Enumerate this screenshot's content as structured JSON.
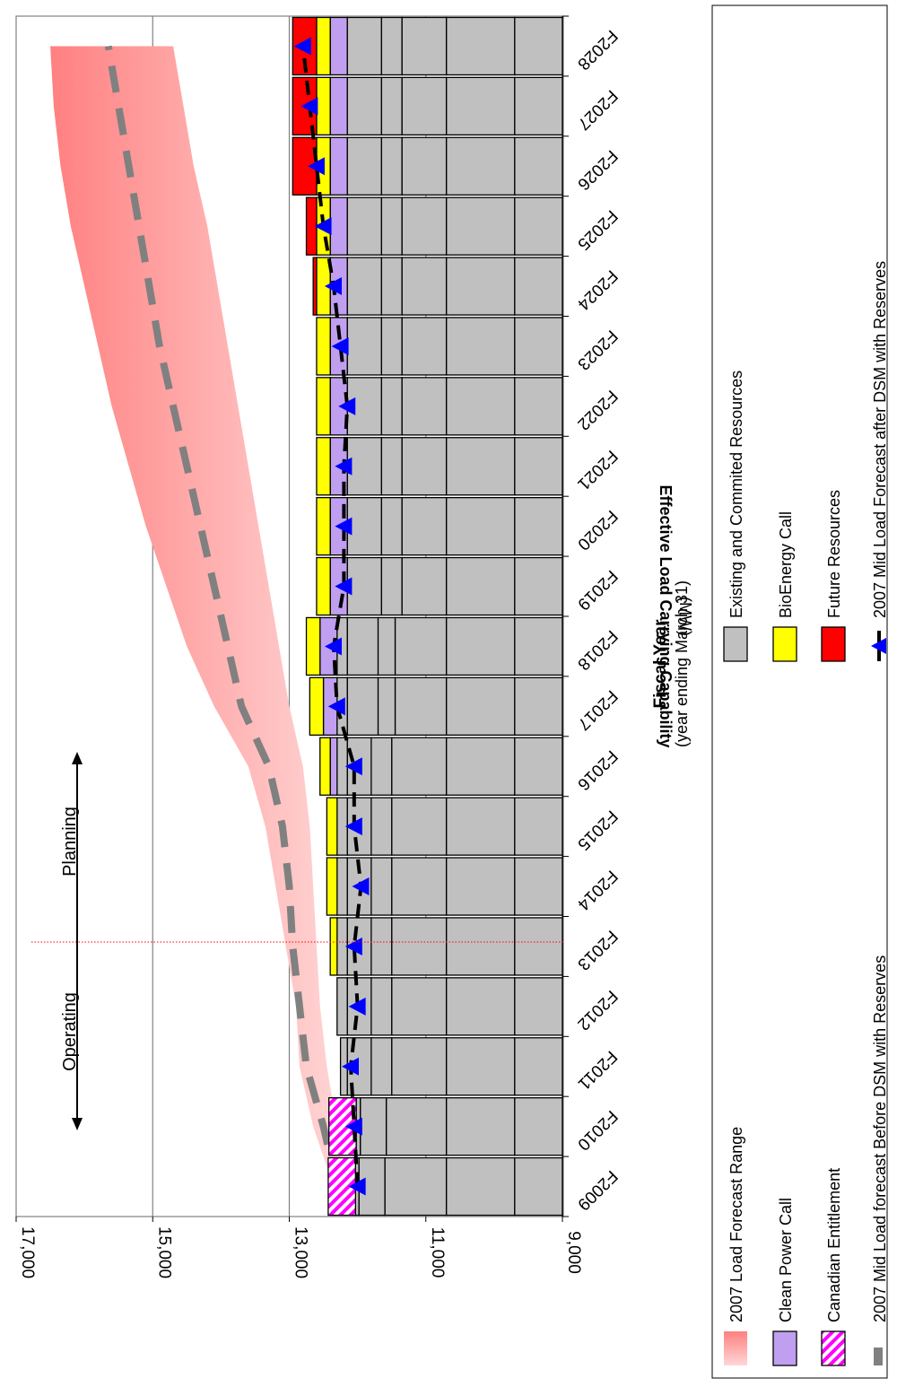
{
  "chart_data": {
    "type": "bar",
    "ylabel": "Effective Load Carrying Capability",
    "ylabel_unit": "(MW)",
    "xlabel": "Fiscal Year",
    "xlabel_sub": "(year ending March 31)",
    "ylim": [
      9000,
      17000
    ],
    "y_ticks": [
      "9,000",
      "11,000",
      "13,000",
      "15,000",
      "17,000"
    ],
    "grid": "horizontal major gridlines",
    "categories": [
      "F2009",
      "F2010",
      "F2011",
      "F2012",
      "F2013",
      "F2014",
      "F2015",
      "F2016",
      "F2017",
      "F2018",
      "F2019",
      "F2020",
      "F2021",
      "F2022",
      "F2023",
      "F2024",
      "F2025",
      "F2026",
      "F2027",
      "F2028"
    ],
    "existing_segments": [
      [
        9700,
        10700,
        11600,
        11980,
        12030
      ],
      [
        9700,
        10700,
        11580,
        11960,
        12020
      ],
      [
        9700,
        10700,
        11500,
        11800,
        12150,
        12250
      ],
      [
        9700,
        10700,
        11500,
        11800,
        12150,
        12300
      ],
      [
        9700,
        10700,
        11500,
        11800,
        12150,
        12300
      ],
      [
        9700,
        10700,
        11500,
        11800,
        12150,
        12300
      ],
      [
        9700,
        10700,
        11500,
        11800,
        12150,
        12300
      ],
      [
        9700,
        10700,
        11500,
        11800,
        12150,
        12300
      ],
      [
        9700,
        10700,
        11450,
        11700,
        12150,
        12300
      ],
      [
        9700,
        10700,
        11450,
        11700,
        12150,
        12300
      ],
      [
        9700,
        10700,
        11350,
        11650,
        12150
      ],
      [
        9700,
        10700,
        11350,
        11650,
        12150
      ],
      [
        9700,
        10700,
        11350,
        11650,
        12150
      ],
      [
        9700,
        10700,
        11350,
        11650,
        12150
      ],
      [
        9700,
        10700,
        11350,
        11650,
        12150
      ],
      [
        9700,
        10700,
        11350,
        11650,
        12150
      ],
      [
        9700,
        10700,
        11350,
        11650,
        12150
      ],
      [
        9700,
        10700,
        11350,
        11650,
        12150
      ],
      [
        9700,
        10700,
        11350,
        11650,
        12150
      ],
      [
        9700,
        10700,
        11350,
        11650,
        12150
      ]
    ],
    "series": [
      {
        "name": "Clean Power Call",
        "color": "#c09ff0",
        "values": [
          0,
          0,
          0,
          0,
          0,
          0,
          0,
          100,
          200,
          250,
          250,
          250,
          250,
          250,
          250,
          250,
          250,
          250,
          250,
          250
        ]
      },
      {
        "name": "Canadian Entitlement",
        "color": "#ff00ff",
        "pattern": "hatch",
        "values": [
          400,
          400,
          0,
          0,
          0,
          0,
          0,
          0,
          0,
          0,
          0,
          0,
          0,
          0,
          0,
          0,
          0,
          0,
          0,
          0
        ]
      },
      {
        "name": "BioEnergy Call",
        "color": "#ffff00",
        "values": [
          0,
          0,
          0,
          0,
          100,
          150,
          150,
          150,
          200,
          200,
          200,
          200,
          200,
          200,
          200,
          200,
          200,
          200,
          200,
          200
        ]
      },
      {
        "name": "Future Resources",
        "color": "#ff0000",
        "values": [
          0,
          0,
          0,
          0,
          0,
          0,
          0,
          0,
          0,
          0,
          0,
          0,
          0,
          0,
          0,
          50,
          150,
          350,
          350,
          350
        ]
      }
    ],
    "mid_forecast_before_dsm": {
      "name": "2007 Mid Load forecast Before DSM with Reserves",
      "color": "#808080",
      "values": [
        12300,
        12500,
        12750,
        12850,
        12950,
        13000,
        13100,
        13300,
        13700,
        13900,
        14100,
        14300,
        14500,
        14700,
        14900,
        15050,
        15200,
        15350,
        15500,
        15650
      ]
    },
    "mid_forecast_after_dsm": {
      "name": "2007 Mid Load Forecast after DSM with Reserves",
      "color": "#000000",
      "marker_color": "#0000ff",
      "values": [
        12000,
        12050,
        12100,
        12000,
        12050,
        11950,
        12050,
        12050,
        12300,
        12350,
        12200,
        12200,
        12200,
        12150,
        12250,
        12350,
        12500,
        12600,
        12700,
        12800
      ]
    },
    "forecast_range": {
      "name": "2007 Load Forecast Range",
      "color": "#ff8080",
      "low": [
        12200,
        12300,
        12450,
        12550,
        12600,
        12650,
        12700,
        12800,
        13000,
        13150,
        13300,
        13450,
        13600,
        13750,
        13900,
        14050,
        14200,
        14400,
        14550,
        14700
      ],
      "high": [
        12350,
        12650,
        12850,
        12900,
        13050,
        13200,
        13350,
        13600,
        14100,
        14500,
        14800,
        15100,
        15350,
        15600,
        15800,
        16000,
        16200,
        16350,
        16450,
        16500
      ]
    },
    "annotations": {
      "operating": "Operating",
      "planning": "Planning"
    },
    "legend_position": "right",
    "legend": [
      {
        "key": "forecast-range",
        "label": "2007 Load Forecast Range"
      },
      {
        "key": "clean-power",
        "label": "Clean Power Call"
      },
      {
        "key": "canadian-entitlement",
        "label": "Canadian Entitlement"
      },
      {
        "key": "before-dsm",
        "label": "2007 Mid Load forecast Before DSM with Reserves"
      },
      {
        "key": "existing",
        "label": "Existing and Commited Resources"
      },
      {
        "key": "bioenergy",
        "label": "BioEnergy Call"
      },
      {
        "key": "future",
        "label": "Future Resources"
      },
      {
        "key": "after-dsm",
        "label": "2007 Mid Load Forecast after DSM with Reserves"
      }
    ],
    "colors": {
      "existing": "#c0c0c0",
      "clean": "#c09ff0",
      "canadian": "#ff00ff",
      "bio": "#ffff00",
      "future": "#ff0000",
      "grid": "#808080"
    }
  }
}
